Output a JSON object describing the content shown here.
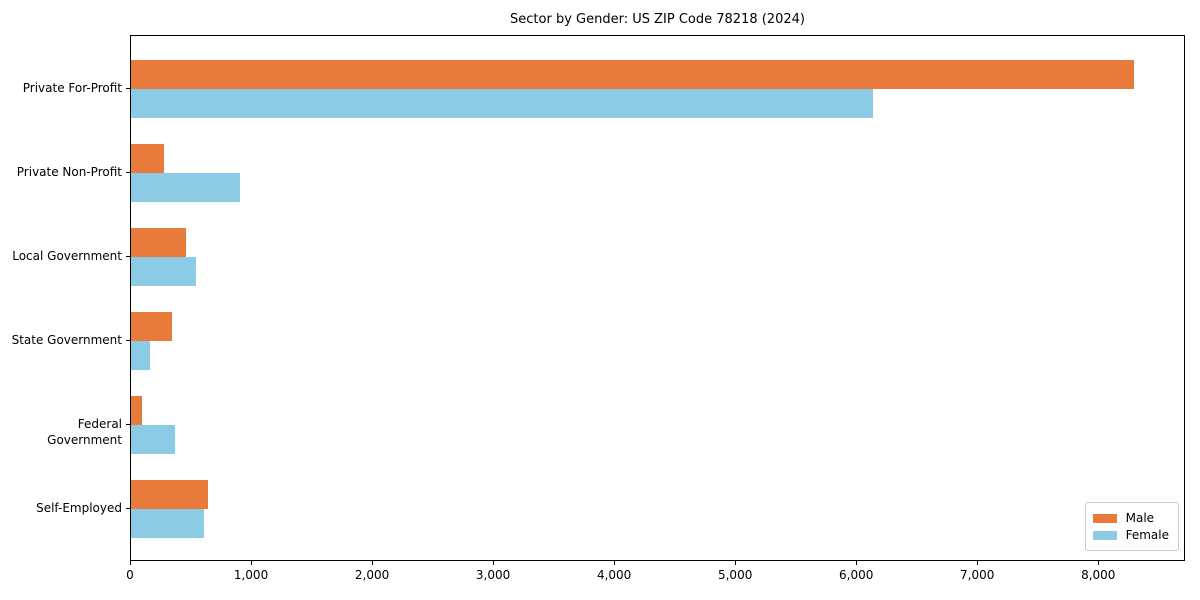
{
  "figure": {
    "background": "#ffffff",
    "spine_color": "#000000"
  },
  "chart_data": {
    "type": "bar",
    "orientation": "horizontal",
    "title": "Sector by Gender: US ZIP Code 78218 (2024)",
    "categories": [
      "Private For-Profit",
      "Private Non-Profit",
      "Local Government",
      "State Government",
      "Federal Government",
      "Self-Employed"
    ],
    "series": [
      {
        "name": "Male",
        "color": "#E87A3C",
        "values": [
          8290,
          275,
          455,
          335,
          95,
          640
        ]
      },
      {
        "name": "Female",
        "color": "#8BCBE6",
        "values": [
          6130,
          900,
          535,
          155,
          365,
          605
        ]
      }
    ],
    "xlabel": "",
    "ylabel": "",
    "xlim": [
      0,
      8700
    ],
    "x_ticks": [
      0,
      1000,
      2000,
      3000,
      4000,
      5000,
      6000,
      7000,
      8000
    ],
    "x_tick_labels": [
      "0",
      "1,000",
      "2,000",
      "3,000",
      "4,000",
      "5,000",
      "6,000",
      "7,000",
      "8,000"
    ],
    "grid": false,
    "legend": {
      "position": "lower right"
    }
  }
}
